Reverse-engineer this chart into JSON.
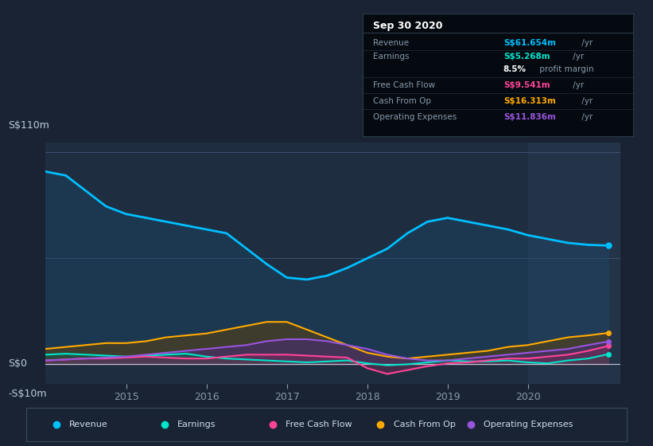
{
  "background_color": "#1a2333",
  "plot_bg_color": "#1e2d40",
  "highlight_bg_color": "#243448",
  "ylim": [
    -10,
    115
  ],
  "years": [
    2014.0,
    2014.25,
    2014.5,
    2014.75,
    2015.0,
    2015.25,
    2015.5,
    2015.75,
    2016.0,
    2016.25,
    2016.5,
    2016.75,
    2017.0,
    2017.25,
    2017.5,
    2017.75,
    2018.0,
    2018.25,
    2018.5,
    2018.75,
    2019.0,
    2019.25,
    2019.5,
    2019.75,
    2020.0,
    2020.25,
    2020.5,
    2020.75,
    2021.0
  ],
  "revenue": [
    100,
    98,
    90,
    82,
    78,
    76,
    74,
    72,
    70,
    68,
    60,
    52,
    45,
    44,
    46,
    50,
    55,
    60,
    68,
    74,
    76,
    74,
    72,
    70,
    67,
    65,
    63,
    62,
    61.654
  ],
  "earnings": [
    5,
    5.5,
    5,
    4.5,
    4,
    4.5,
    5,
    5.5,
    4,
    3,
    2.5,
    2,
    1.5,
    1,
    1.5,
    2,
    0.5,
    -0.5,
    0,
    1,
    2,
    1.5,
    1.5,
    2,
    1,
    0.5,
    2,
    3,
    5.268
  ],
  "free_cash_flow": [
    2,
    2.5,
    3,
    3,
    3.5,
    4,
    3.5,
    3,
    3,
    4,
    5,
    5,
    5,
    4.5,
    4,
    3.5,
    -2,
    -5,
    -3,
    -1,
    0.5,
    1,
    2,
    3,
    3,
    4,
    5,
    7,
    9.541
  ],
  "cash_from_op": [
    8,
    9,
    10,
    11,
    11,
    12,
    14,
    15,
    16,
    18,
    20,
    22,
    22,
    18,
    14,
    10,
    6,
    4,
    3,
    4,
    5,
    6,
    7,
    9,
    10,
    12,
    14,
    15,
    16.313
  ],
  "operating_expenses": [
    2,
    2.5,
    3,
    3.5,
    4,
    5,
    6,
    7,
    8,
    9,
    10,
    12,
    13,
    13,
    12,
    10,
    8,
    5,
    3,
    2,
    2,
    3,
    4,
    5,
    6,
    7,
    8,
    10,
    11.836
  ],
  "revenue_color": "#00bfff",
  "earnings_color": "#00e5cc",
  "free_cash_flow_color": "#ff4499",
  "cash_from_op_color": "#ffaa00",
  "operating_expenses_color": "#9955dd",
  "revenue_fill": "#1a4a6e",
  "earnings_fill": "#1a5a4a",
  "free_cash_flow_fill": "#7a2a5a",
  "cash_from_op_fill": "#5a4010",
  "operating_expenses_fill": "#4a2a7a",
  "highlight_start": 2020.0,
  "x_ticks": [
    2015,
    2016,
    2017,
    2018,
    2019,
    2020
  ],
  "y_label_top": "S$110m",
  "y_label_zero": "S$0",
  "y_label_bottom": "-S$10m",
  "legend_items": [
    {
      "label": "Revenue",
      "color": "#00bfff"
    },
    {
      "label": "Earnings",
      "color": "#00e5cc"
    },
    {
      "label": "Free Cash Flow",
      "color": "#ff4499"
    },
    {
      "label": "Cash From Op",
      "color": "#ffaa00"
    },
    {
      "label": "Operating Expenses",
      "color": "#9955dd"
    }
  ],
  "info_box_title": "Sep 30 2020",
  "info_rows": [
    {
      "label": "Revenue",
      "value": "S$61.654m",
      "unit": " /yr",
      "color": "#00bfff",
      "sep_above": false
    },
    {
      "label": "Earnings",
      "value": "S$5.268m",
      "unit": " /yr",
      "color": "#00e5cc",
      "sep_above": true
    },
    {
      "label": "",
      "value": "8.5%",
      "unit": " profit margin",
      "color": "#ffffff",
      "sep_above": false
    },
    {
      "label": "Free Cash Flow",
      "value": "S$9.541m",
      "unit": " /yr",
      "color": "#ff4499",
      "sep_above": true
    },
    {
      "label": "Cash From Op",
      "value": "S$16.313m",
      "unit": " /yr",
      "color": "#ffaa00",
      "sep_above": true
    },
    {
      "label": "Operating Expenses",
      "value": "S$11.836m",
      "unit": " /yr",
      "color": "#9955dd",
      "sep_above": true
    }
  ]
}
